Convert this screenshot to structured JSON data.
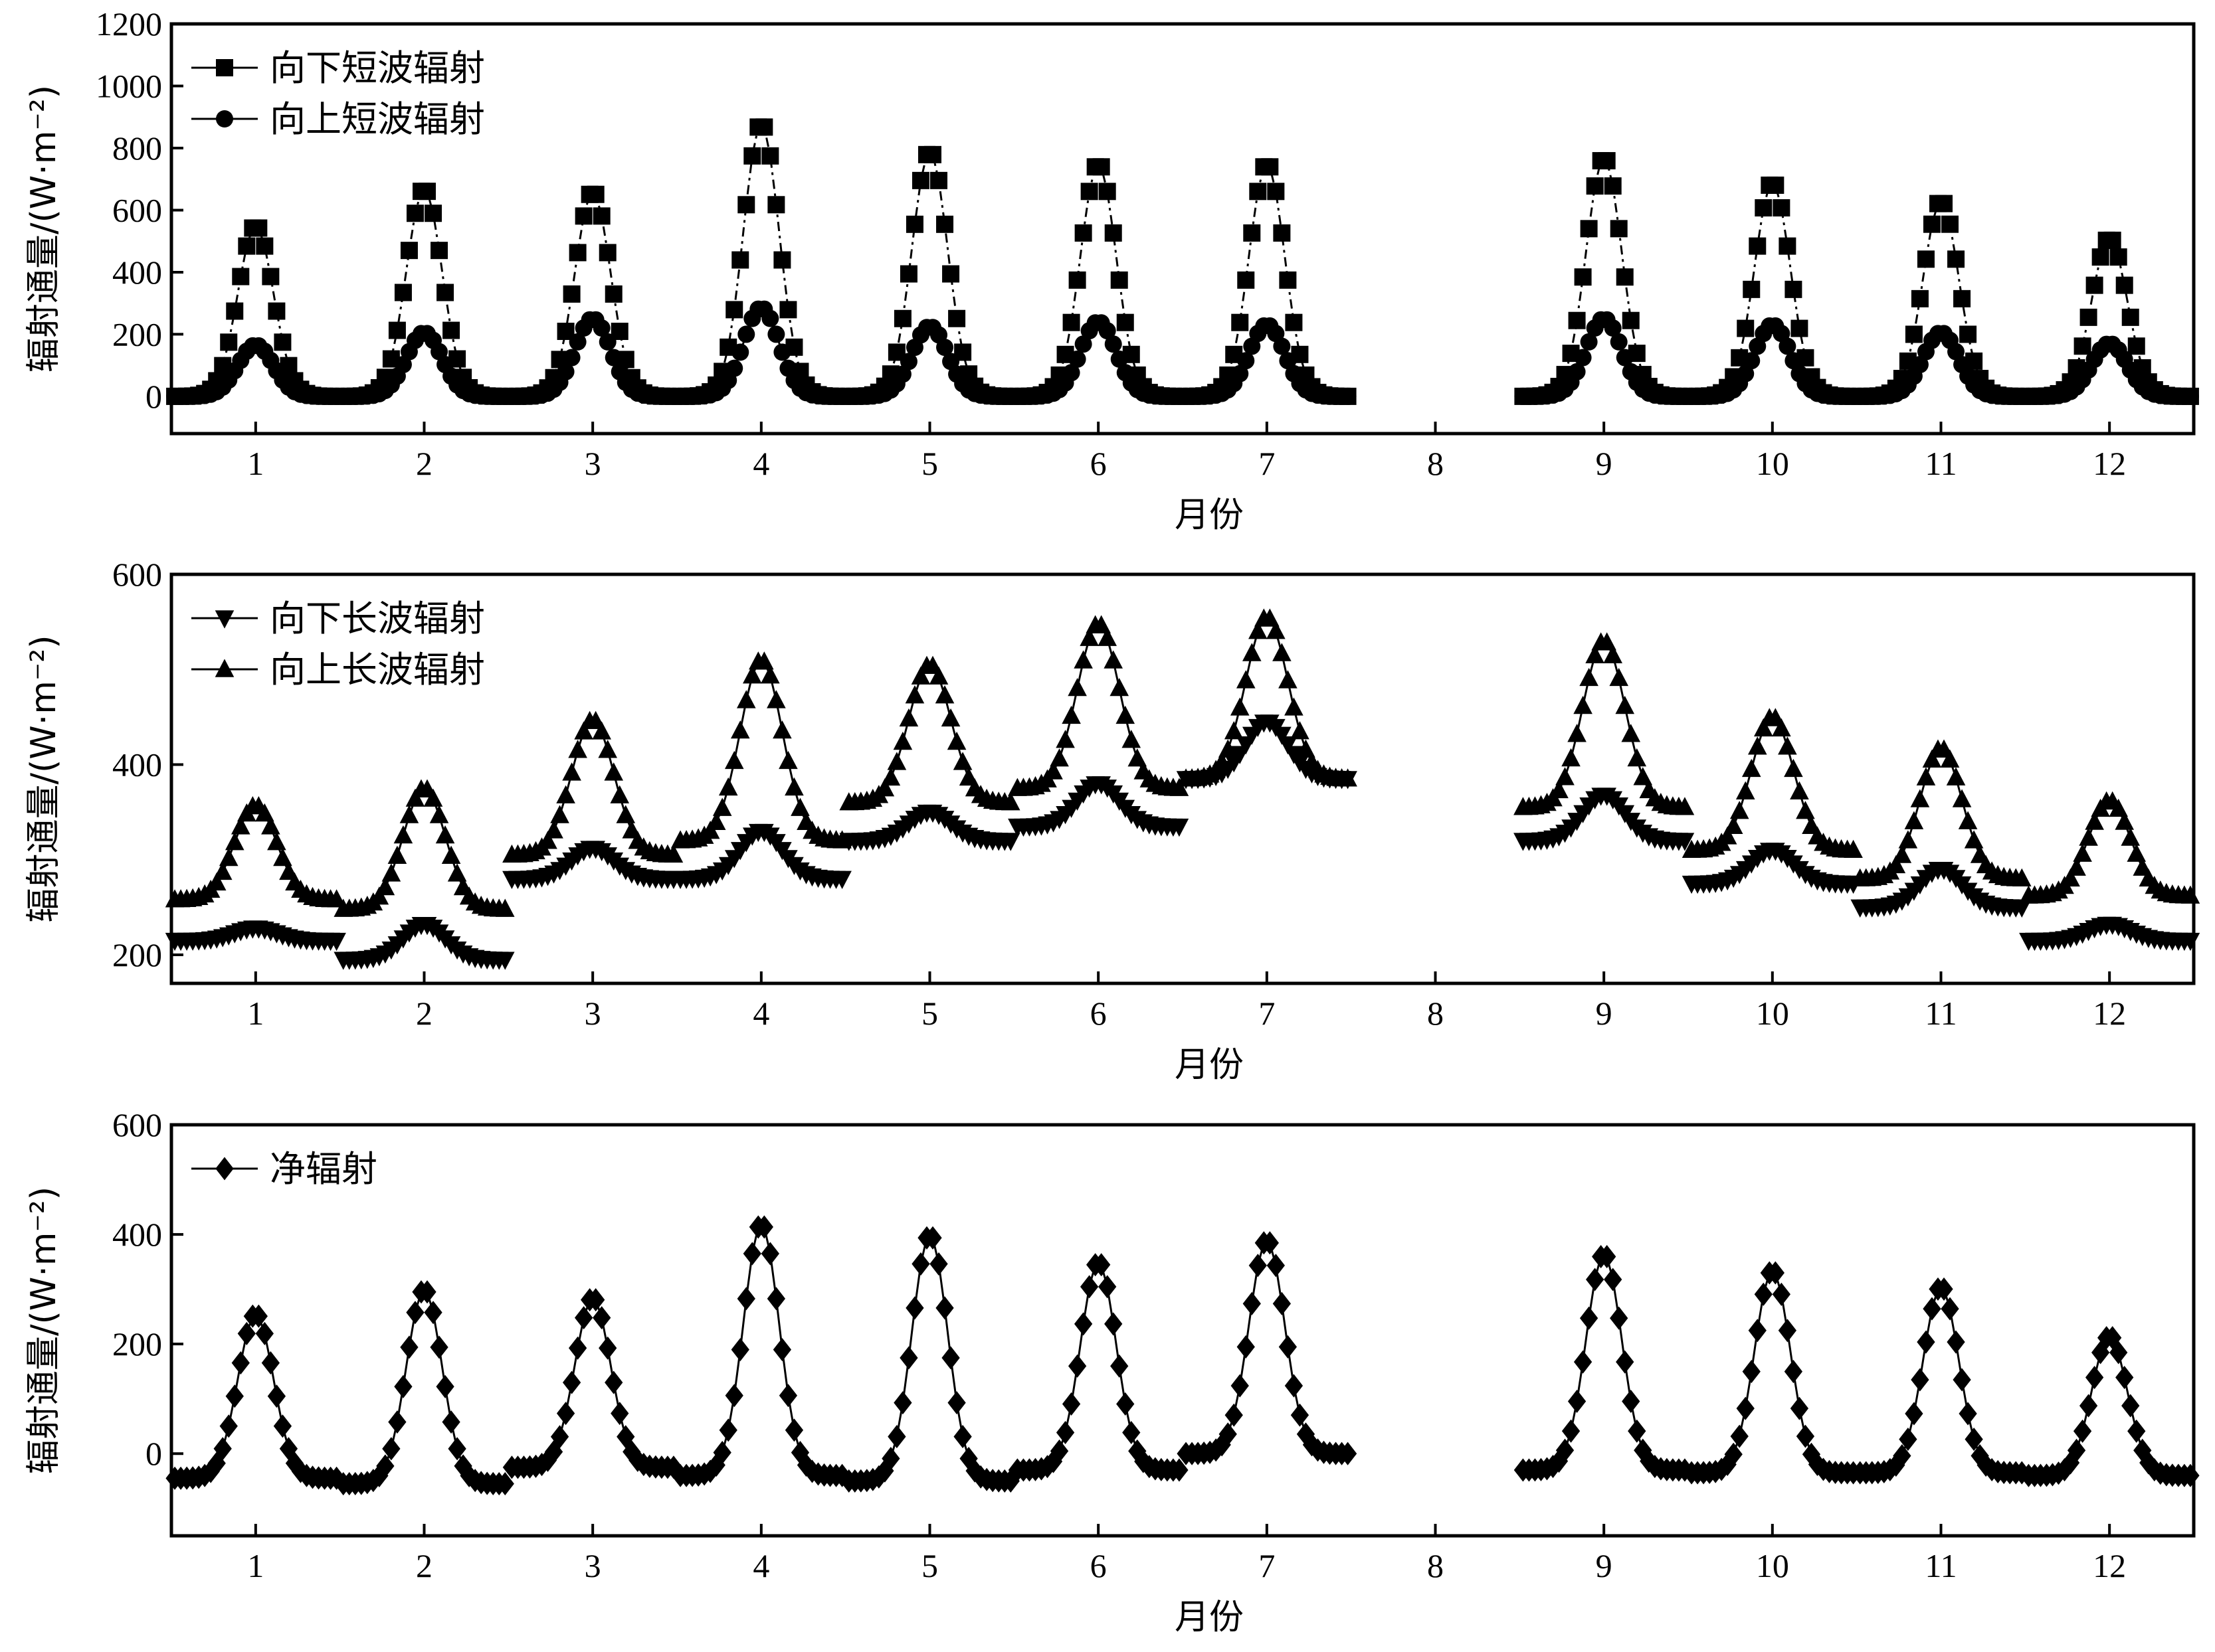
{
  "chart_data": [
    {
      "type": "line",
      "xlabel": "月份",
      "ylabel": "辐射通量/(W·m⁻²)",
      "xlim": [
        0.5,
        12.5
      ],
      "ylim": [
        -120,
        1200
      ],
      "xticks": [
        1,
        2,
        3,
        4,
        5,
        6,
        7,
        8,
        9,
        10,
        11,
        12
      ],
      "yticks": [
        0,
        200,
        400,
        600,
        800,
        1000,
        1200
      ],
      "legend_position": "top-left",
      "months_shown": [
        1,
        2,
        3,
        4,
        5,
        6,
        7,
        9,
        10,
        11,
        12
      ],
      "series": [
        {
          "name": "向下短波辐射",
          "marker": "square",
          "line": "dashdot",
          "base": [
            0,
            0,
            0,
            0,
            0,
            0,
            0,
            0,
            0,
            0,
            0,
            0
          ],
          "peak": [
            550,
            670,
            660,
            880,
            790,
            750,
            750,
            null,
            770,
            690,
            630,
            510
          ]
        },
        {
          "name": "向上短波辐射",
          "marker": "circle",
          "line": "solid",
          "base": [
            0,
            0,
            0,
            0,
            0,
            0,
            0,
            0,
            0,
            0,
            0,
            0
          ],
          "peak": [
            165,
            205,
            250,
            285,
            225,
            240,
            230,
            null,
            250,
            230,
            205,
            170
          ]
        }
      ]
    },
    {
      "type": "line",
      "xlabel": "月份",
      "ylabel": "辐射通量/(W·m⁻²)",
      "xlim": [
        0.5,
        12.5
      ],
      "ylim": [
        170,
        600
      ],
      "xticks": [
        1,
        2,
        3,
        4,
        5,
        6,
        7,
        8,
        9,
        10,
        11,
        12
      ],
      "yticks": [
        200,
        400,
        600
      ],
      "legend_position": "top-left",
      "months_shown": [
        1,
        2,
        3,
        4,
        5,
        6,
        7,
        9,
        10,
        11,
        12
      ],
      "series": [
        {
          "name": "向下长波辐射",
          "marker": "triangle-down",
          "line": "solid",
          "base": [
            215,
            195,
            280,
            280,
            320,
            335,
            385,
            null,
            320,
            275,
            250,
            215
          ],
          "peak": [
            228,
            232,
            312,
            330,
            350,
            380,
            445,
            null,
            368,
            310,
            290,
            232
          ]
        },
        {
          "name": "向上长波辐射",
          "marker": "triangle-up",
          "line": "solid",
          "base": [
            258,
            248,
            305,
            320,
            360,
            375,
            385,
            null,
            355,
            310,
            280,
            262
          ],
          "peak": [
            357,
            375,
            447,
            510,
            505,
            548,
            555,
            null,
            530,
            450,
            417,
            362
          ]
        }
      ]
    },
    {
      "type": "line",
      "xlabel": "月份",
      "ylabel": "辐射通量/(W·m⁻²)",
      "xlim": [
        0.5,
        12.5
      ],
      "ylim": [
        -150,
        600
      ],
      "xticks": [
        1,
        2,
        3,
        4,
        5,
        6,
        7,
        8,
        9,
        10,
        11,
        12
      ],
      "yticks": [
        0,
        200,
        400,
        600
      ],
      "legend_position": "top-left",
      "months_shown": [
        1,
        2,
        3,
        4,
        5,
        6,
        7,
        9,
        10,
        11,
        12
      ],
      "series": [
        {
          "name": "净辐射",
          "marker": "diamond",
          "line": "solid",
          "base": [
            -45,
            -55,
            -25,
            -40,
            -50,
            -30,
            0,
            null,
            -30,
            -35,
            -35,
            -40
          ],
          "peak": [
            255,
            300,
            285,
            420,
            400,
            350,
            390,
            null,
            365,
            335,
            305,
            215
          ]
        }
      ]
    }
  ]
}
